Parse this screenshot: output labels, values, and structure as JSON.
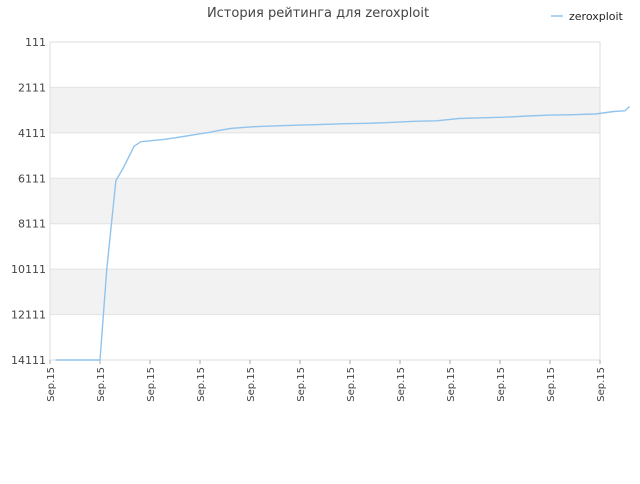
{
  "chart_data": {
    "type": "line",
    "title": "История рейтинга для zeroxploit",
    "xlabel": "",
    "ylabel": "",
    "ylim": [
      14111,
      111
    ],
    "y_inverted": true,
    "y_ticks": [
      111,
      2111,
      4111,
      6111,
      8111,
      10111,
      12111,
      14111
    ],
    "x_tick_labels": [
      "Sep.15",
      "Sep.15",
      "Sep.15",
      "Sep.15",
      "Sep.15",
      "Sep.15",
      "Sep.15",
      "Sep.15",
      "Sep.15",
      "Sep.15",
      "Sep.15",
      "Sep.15"
    ],
    "grid": true,
    "banded_background": true,
    "legend_position": "top-right",
    "series": [
      {
        "name": "zeroxploit",
        "color": "#90c4ee",
        "x": [
          0.25,
          1.2,
          1.9,
          2.2,
          2.5,
          2.9,
          3.2,
          3.4,
          3.7,
          4.0,
          4.5,
          5.0,
          5.5,
          6.0,
          6.5,
          7.0,
          7.4,
          8.0,
          9.0,
          10.0,
          11.0,
          12.0,
          13.0,
          14.0,
          15.0,
          16.0,
          17.0,
          18.0,
          19.0,
          20.0,
          21.0,
          22.0,
          23.0,
          24.0,
          24.8,
          25.3,
          25.5
        ],
        "y": [
          14111,
          14111,
          14111,
          14111,
          10100,
          6211,
          5700,
          5300,
          4700,
          4500,
          4450,
          4400,
          4330,
          4250,
          4170,
          4090,
          4010,
          3910,
          3840,
          3800,
          3770,
          3740,
          3710,
          3690,
          3650,
          3600,
          3580,
          3480,
          3450,
          3420,
          3370,
          3330,
          3310,
          3280,
          3170,
          3140,
          2950
        ]
      }
    ]
  }
}
